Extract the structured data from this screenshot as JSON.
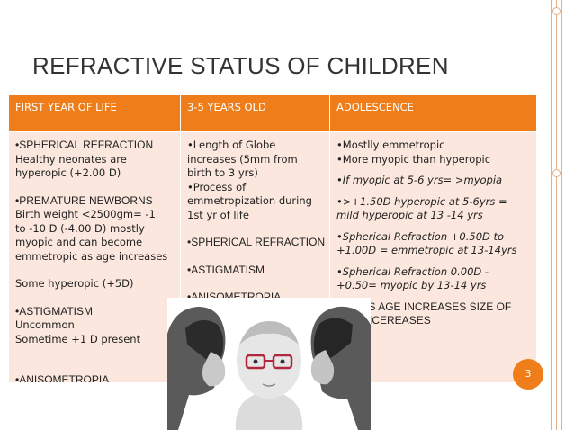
{
  "slide": {
    "title": "REFRACTIVE STATUS OF CHILDREN",
    "page_number": "3",
    "accent_color": "#ee7d1a",
    "cell_color": "#fbe7dd"
  },
  "table": {
    "headers": [
      "FIRST YEAR OF LIFE",
      "3-5 YEARS OLD",
      "ADOLESCENCE"
    ],
    "col1": {
      "l1": "•SPHERICAL REFRACTION",
      "l2": "Healthy neonates are",
      "l3": "hyperopic (+2.00 D)",
      "l4": "•PREMATURE NEWBORNS",
      "l5": "Birth weight <2500gm= -1",
      "l6": "to -10 D (-4.00 D) mostly",
      "l7": "myopic and can become",
      "l8": "emmetropic as age increases",
      "l9": "Some hyperopic (+5D)",
      "l10": "•ASTIGMATISM",
      "l11": "Uncommon",
      "l12": "Sometime +1 D present",
      "l13": "•ANISOMETROPIA"
    },
    "col2": {
      "l1": "•Length of Globe",
      "l2": "increases (5mm from",
      "l3": "birth to 3 yrs)",
      "l4": "•Process of",
      "l5": "emmetropization during",
      "l6": "1st yr of life",
      "l7": "•SPHERICAL REFRACTION",
      "l8": "•ASTIGMATISM",
      "l9": "•ANISOMETROPIA"
    },
    "col3": {
      "l1": "•Mostlly emmetropic",
      "l2": "•More myopic than hyperopic",
      "l3": "•If myopic at 5-6 yrs= >myopia",
      "l4": "•>+1.50D hyperopic at 5-6yrs =",
      "l5": "mild hyperopic at 13 -14 yrs",
      "l6": "•Spherical Refraction +0.50D to",
      "l7": "+1.00D = emmetropic at 13-14yrs",
      "l8": "•Spherical Refraction 0.00D -",
      "l9": "+0.50= myopic by 13-14 yrs",
      "l10": "•NB- AS AGE INCREASES SIZE OF",
      "l11": "EYE INCEREASES"
    }
  }
}
